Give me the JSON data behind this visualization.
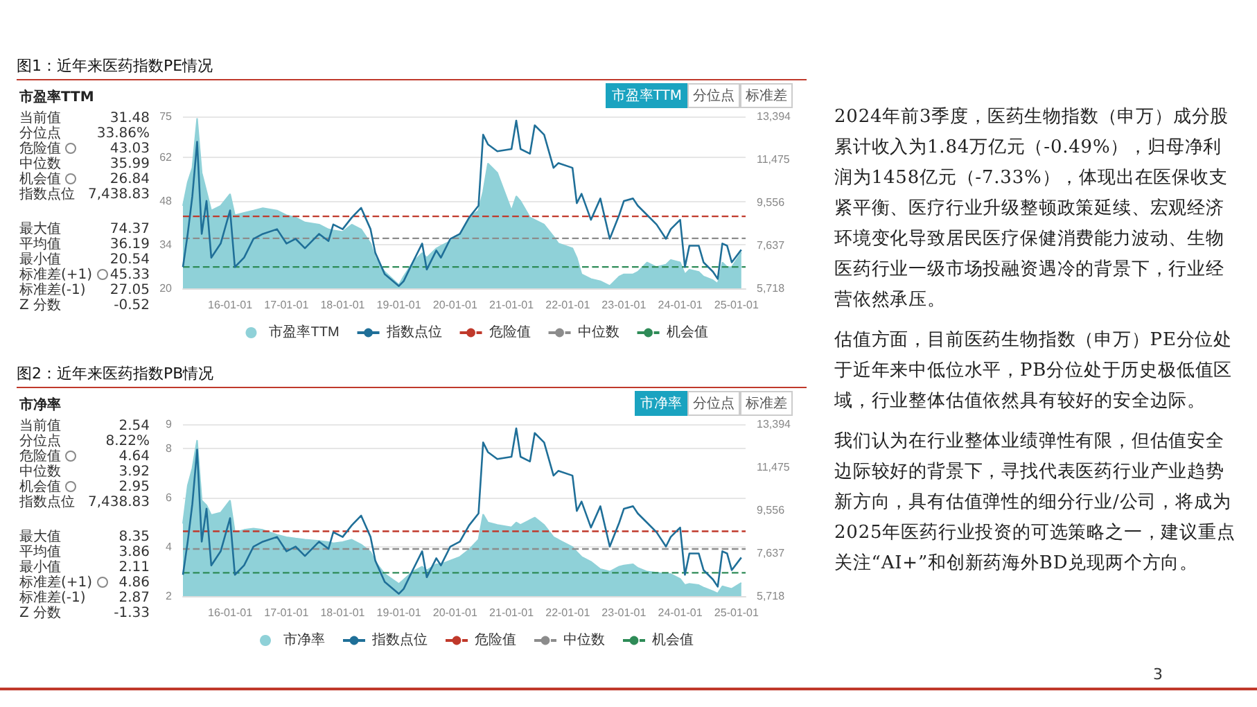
{
  "chart_data": [
    {
      "type": "line",
      "title": "图1：近年来医药指数PE情况",
      "annotations": [
        "市盈率TTM",
        "当前值",
        "31.48",
        "分位点",
        "33.86%",
        "危险值",
        "43.03",
        "中位数",
        "35.99",
        "机会值",
        "26.84",
        "指数点位",
        "7,438.83",
        "最大值",
        "74.37",
        "平均值",
        "36.19",
        "最小值",
        "20.54",
        "标准差(+1)",
        "45.33",
        "标准差(-1)",
        "27.05",
        "Z 分数",
        "-0.52",
        "市盈率TTM",
        "分位点",
        "标准差"
      ],
      "x": [
        "2015-03",
        "2015-04",
        "2015-05",
        "2015-06",
        "2015-07",
        "2015-08",
        "2015-09",
        "2015-11",
        "2016-01",
        "2016-02",
        "2016-04",
        "2016-06",
        "2016-08",
        "2016-11",
        "2017-01",
        "2017-03",
        "2017-05",
        "2017-08",
        "2017-10",
        "2017-11",
        "2018-01",
        "2018-03",
        "2018-05",
        "2018-07",
        "2018-08",
        "2018-10",
        "2019-01",
        "2019-02",
        "2019-04",
        "2019-06",
        "2019-07",
        "2019-09",
        "2019-10",
        "2019-12",
        "2020-02",
        "2020-04",
        "2020-06",
        "2020-07",
        "2020-08",
        "2020-10",
        "2021-01",
        "2021-02",
        "2021-03",
        "2021-05",
        "2021-06",
        "2021-08",
        "2021-10",
        "2021-11",
        "2022-02",
        "2022-03",
        "2022-04",
        "2022-06",
        "2022-08",
        "2022-10",
        "2022-12",
        "2023-01",
        "2023-03",
        "2023-04",
        "2023-06",
        "2023-08",
        "2023-10",
        "2023-11",
        "2024-01",
        "2024-02",
        "2024-03",
        "2024-05",
        "2024-06",
        "2024-08",
        "2024-09",
        "2024-10",
        "2024-11",
        "2024-12",
        "2025-02"
      ],
      "series": [
        {
          "name": "市盈率TTM",
          "type": "area",
          "color": "#8fd1d8",
          "values": [
            46.4,
            54.0,
            58.5,
            74.4,
            57.0,
            51.0,
            44.9,
            46.4,
            50.2,
            43.4,
            44.2,
            44.9,
            45.7,
            44.9,
            43.4,
            42.7,
            41.1,
            40.4,
            38.9,
            38.6,
            38.1,
            40.4,
            38.9,
            34.4,
            29.8,
            25.3,
            21.1,
            23.8,
            28.3,
            31.3,
            29.8,
            32.8,
            33.6,
            35.1,
            37.4,
            42.7,
            44.9,
            51.0,
            60.0,
            57.0,
            44.9,
            49.5,
            47.9,
            42.7,
            41.9,
            40.4,
            36.6,
            34.4,
            32.8,
            29.8,
            24.5,
            23.0,
            22.3,
            20.8,
            23.8,
            24.5,
            24.5,
            25.3,
            28.3,
            26.8,
            27.6,
            29.1,
            28.3,
            24.5,
            26.0,
            25.3,
            23.8,
            22.6,
            21.5,
            28.3,
            26.8,
            26.8,
            31.5
          ]
        },
        {
          "name": "指数点位",
          "type": "line",
          "axis": "y2",
          "color": "#1f6f98",
          "values": [
            6670,
            8150,
            9830,
            12260,
            8150,
            9620,
            7090,
            7720,
            9200,
            6670,
            7090,
            7930,
            8150,
            8360,
            7720,
            7930,
            7510,
            8150,
            7830,
            8570,
            8360,
            8880,
            9310,
            8360,
            7300,
            6350,
            5820,
            6040,
            6880,
            7720,
            6560,
            7410,
            7090,
            7930,
            8150,
            8880,
            9410,
            12580,
            12150,
            11840,
            11940,
            13210,
            11940,
            11730,
            13000,
            12580,
            11100,
            11310,
            11100,
            9520,
            9940,
            8780,
            9730,
            7930,
            8990,
            9620,
            9730,
            9410,
            8990,
            8570,
            7930,
            8360,
            8780,
            6670,
            7620,
            7620,
            6880,
            6460,
            6140,
            7720,
            7620,
            6880,
            7440
          ]
        }
      ],
      "ref_lines": [
        {
          "axis": "y",
          "value": 43.03,
          "label": "危险值",
          "color": "#c0392b",
          "line_style": "dashed"
        },
        {
          "axis": "y",
          "value": 35.99,
          "label": "中位数",
          "color": "#8c8c8c",
          "line_style": "dashed"
        },
        {
          "axis": "y",
          "value": 26.84,
          "label": "机会值",
          "color": "#2e8b57",
          "line_style": "dashed"
        }
      ],
      "xlim": [
        "2015-03-01",
        "2025-03-01"
      ],
      "xticks": [
        {
          "value": "2016-01-01",
          "label": "16-01-01"
        },
        {
          "value": "2017-01-01",
          "label": "17-01-01"
        },
        {
          "value": "2018-01-01",
          "label": "18-01-01"
        },
        {
          "value": "2019-01-01",
          "label": "19-01-01"
        },
        {
          "value": "2020-01-01",
          "label": "20-01-01"
        },
        {
          "value": "2021-01-01",
          "label": "21-01-01"
        },
        {
          "value": "2022-01-01",
          "label": "22-01-01"
        },
        {
          "value": "2023-01-01",
          "label": "23-01-01"
        },
        {
          "value": "2024-01-01",
          "label": "24-01-01"
        },
        {
          "value": "2025-01-01",
          "label": "25-01-01"
        }
      ],
      "ylim": [
        20,
        75
      ],
      "yticks": [
        20,
        34,
        48,
        62,
        75
      ],
      "y2lim": [
        5718,
        13394
      ],
      "y2ticks": [
        {
          "value": 5718,
          "label": "5,718"
        },
        {
          "value": 7637,
          "label": "7,637"
        },
        {
          "value": 9556,
          "label": "9,556"
        },
        {
          "value": 11475,
          "label": "11,475"
        },
        {
          "value": 13394,
          "label": "13,394"
        }
      ],
      "grid": "y",
      "legend": "bottom",
      "marker": "none"
    },
    {
      "type": "line",
      "title": "图2：近年来医药指数PB情况",
      "annotations": [
        "市净率",
        "当前值",
        "2.54",
        "分位点",
        "8.22%",
        "危险值",
        "4.64",
        "中位数",
        "3.92",
        "机会值",
        "2.95",
        "指数点位",
        "7,438.83",
        "最大值",
        "8.35",
        "平均值",
        "3.86",
        "最小值",
        "2.11",
        "标准差(+1)",
        "4.86",
        "标准差(-1)",
        "2.87",
        "Z 分数",
        "-1.33",
        "市净率",
        "分位点",
        "标准差"
      ],
      "x": [
        "2015-03",
        "2015-04",
        "2015-05",
        "2015-06",
        "2015-07",
        "2015-08",
        "2015-09",
        "2015-11",
        "2016-01",
        "2016-02",
        "2016-04",
        "2016-06",
        "2016-08",
        "2016-11",
        "2017-01",
        "2017-03",
        "2017-05",
        "2017-08",
        "2017-10",
        "2017-11",
        "2018-01",
        "2018-03",
        "2018-05",
        "2018-07",
        "2018-08",
        "2018-10",
        "2019-01",
        "2019-02",
        "2019-04",
        "2019-06",
        "2019-07",
        "2019-09",
        "2019-10",
        "2019-12",
        "2020-02",
        "2020-04",
        "2020-06",
        "2020-07",
        "2020-08",
        "2020-10",
        "2021-01",
        "2021-02",
        "2021-03",
        "2021-05",
        "2021-06",
        "2021-08",
        "2021-10",
        "2021-11",
        "2022-02",
        "2022-03",
        "2022-04",
        "2022-06",
        "2022-08",
        "2022-10",
        "2022-12",
        "2023-01",
        "2023-03",
        "2023-04",
        "2023-06",
        "2023-08",
        "2023-10",
        "2023-11",
        "2024-01",
        "2024-02",
        "2024-03",
        "2024-05",
        "2024-06",
        "2024-08",
        "2024-09",
        "2024-10",
        "2024-11",
        "2024-12",
        "2025-02"
      ],
      "series": [
        {
          "name": "市净率",
          "type": "area",
          "color": "#8fd1d8",
          "values": [
            4.95,
            6.5,
            7.2,
            8.35,
            5.9,
            5.7,
            5.3,
            5.4,
            5.9,
            4.6,
            4.7,
            4.75,
            4.7,
            4.5,
            4.4,
            4.35,
            4.3,
            4.25,
            4.2,
            4.15,
            4.2,
            4.3,
            4.1,
            3.8,
            3.4,
            2.9,
            2.5,
            2.67,
            3.0,
            3.2,
            3.05,
            3.3,
            3.3,
            3.45,
            3.6,
            3.9,
            4.3,
            5.33,
            5.0,
            4.9,
            4.8,
            5.0,
            4.9,
            5.1,
            5.2,
            4.9,
            4.4,
            4.3,
            4.0,
            3.8,
            3.6,
            3.4,
            3.1,
            3.0,
            3.2,
            3.25,
            3.3,
            3.15,
            3.0,
            2.95,
            2.9,
            2.9,
            2.7,
            2.45,
            2.5,
            2.45,
            2.35,
            2.2,
            2.11,
            2.4,
            2.35,
            2.3,
            2.54
          ]
        },
        {
          "name": "指数点位",
          "type": "line",
          "axis": "y2",
          "color": "#1f6f98",
          "values": [
            6670,
            8150,
            9830,
            12260,
            8150,
            9620,
            7090,
            7720,
            9200,
            6670,
            7090,
            7930,
            8150,
            8360,
            7720,
            7930,
            7510,
            8150,
            7830,
            8570,
            8360,
            8880,
            9310,
            8360,
            7300,
            6350,
            5820,
            6040,
            6880,
            7720,
            6560,
            7410,
            7090,
            7930,
            8150,
            8880,
            9410,
            12580,
            12150,
            11840,
            11940,
            13210,
            11940,
            11730,
            13000,
            12580,
            11100,
            11310,
            11100,
            9520,
            9940,
            8780,
            9730,
            7930,
            8990,
            9620,
            9730,
            9410,
            8990,
            8570,
            7930,
            8360,
            8780,
            6670,
            7620,
            7620,
            6880,
            6460,
            6140,
            7720,
            7620,
            6880,
            7440
          ]
        }
      ],
      "ref_lines": [
        {
          "axis": "y",
          "value": 4.64,
          "label": "危险值",
          "color": "#c0392b",
          "line_style": "dashed"
        },
        {
          "axis": "y",
          "value": 3.92,
          "label": "中位数",
          "color": "#8c8c8c",
          "line_style": "dashed"
        },
        {
          "axis": "y",
          "value": 2.95,
          "label": "机会值",
          "color": "#2e8b57",
          "line_style": "dashed"
        }
      ],
      "xlim": [
        "2015-03-01",
        "2025-03-01"
      ],
      "xticks": [
        {
          "value": "2016-01-01",
          "label": "16-01-01"
        },
        {
          "value": "2017-01-01",
          "label": "17-01-01"
        },
        {
          "value": "2018-01-01",
          "label": "18-01-01"
        },
        {
          "value": "2019-01-01",
          "label": "19-01-01"
        },
        {
          "value": "2020-01-01",
          "label": "20-01-01"
        },
        {
          "value": "2021-01-01",
          "label": "21-01-01"
        },
        {
          "value": "2022-01-01",
          "label": "22-01-01"
        },
        {
          "value": "2023-01-01",
          "label": "23-01-01"
        },
        {
          "value": "2024-01-01",
          "label": "24-01-01"
        },
        {
          "value": "2025-01-01",
          "label": "25-01-01"
        }
      ],
      "ylim": [
        2,
        9
      ],
      "yticks": [
        2,
        4,
        6,
        8,
        9
      ],
      "y2lim": [
        5718,
        13394
      ],
      "y2ticks": [
        {
          "value": 5718,
          "label": "5,718"
        },
        {
          "value": 7637,
          "label": "7,637"
        },
        {
          "value": 9556,
          "label": "9,556"
        },
        {
          "value": 11475,
          "label": "11,475"
        },
        {
          "value": 13394,
          "label": "13,394"
        }
      ],
      "grid": "y",
      "legend": "bottom",
      "marker": "none"
    },
    {
      "type": "other",
      "annotations": [
        "2024年前3季度，医药生物指数（申万）成分股累计收入为1.84万亿元（-0.49%），归母净利润为1458亿元（-7.33%），体现出在医保收支紧平衡、医疗行业升级整顿政策延续、宏观经济环境变化导致居民医疗保健消费能力波动、生物医药行业一级市场投融资遇冷的背景下，行业经营依然承压。",
        "估值方面，目前医药生物指数（申万）PE分位处于近年来中低位水平，PB分位处于历史极低值区域，行业整体估值依然具有较好的安全边际。",
        "我们认为在行业整体业绩弹性有限，但估值安全边际较好的背景下，寻找代表医药行业产业趋势新方向，具有估值弹性的细分行业/公司，将成为2025年医药行业投资的可选策略之一，建议重点关注“AI+”和创新药海外BD兑现两个方向。",
        "3"
      ]
    }
  ]
}
